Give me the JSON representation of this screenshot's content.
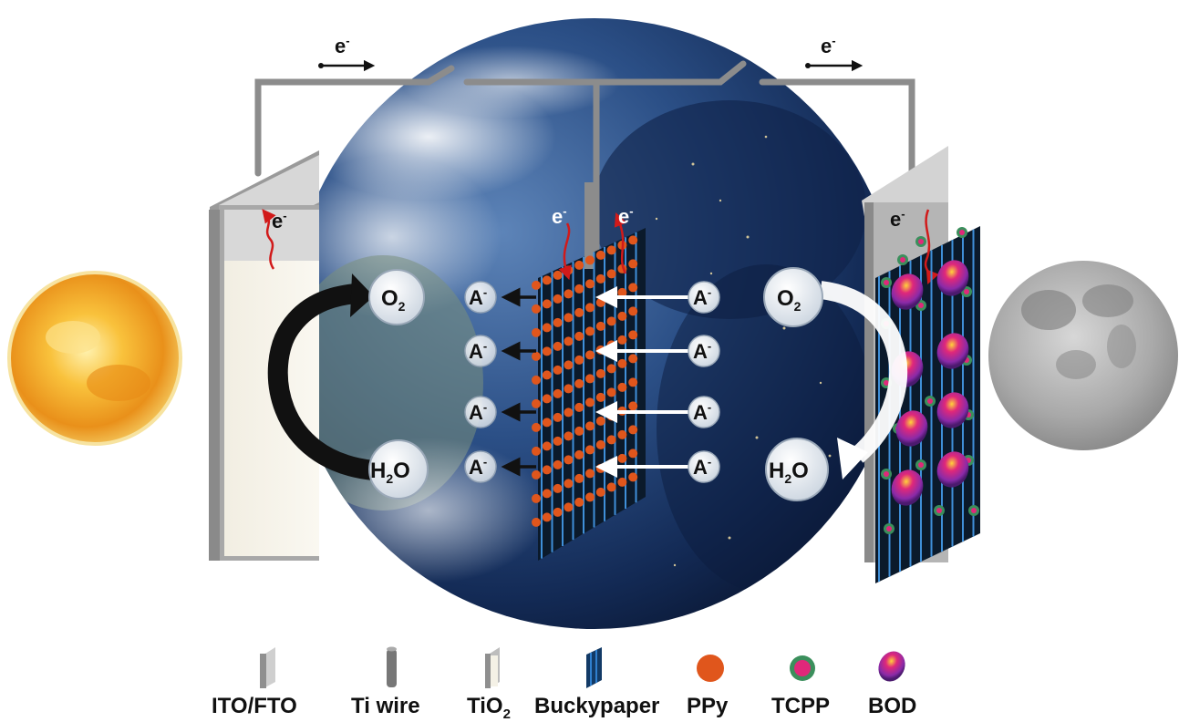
{
  "electron": {
    "base": "e",
    "sup": "-"
  },
  "species": {
    "oxygen": {
      "base": "O",
      "sub": "2"
    },
    "water": {
      "pre": "H",
      "sub": "2",
      "post": "O"
    },
    "anion": {
      "base": "A",
      "sup": "-"
    }
  },
  "legend": [
    {
      "key": "ito",
      "label": "ITO/FTO"
    },
    {
      "key": "ti",
      "label": "Ti wire"
    },
    {
      "key": "tio2",
      "label": "TiO",
      "sub": "2"
    },
    {
      "key": "bucky",
      "label": "Buckypaper"
    },
    {
      "key": "ppy",
      "label": "PPy"
    },
    {
      "key": "tcpp",
      "label": "TCPP"
    },
    {
      "key": "bod",
      "label": "BOD"
    }
  ],
  "colors": {
    "wire": "#8c8c8c",
    "ppy": "#e0561c",
    "tcpp_ring": "#3b8f5c",
    "tcpp_core": "#e0287a",
    "bod": "#8a2aa8",
    "red_arrow": "#d11a1a",
    "sun": "#f2a21c",
    "moon": "#9a9a9a",
    "earth_ocean": "#1d3a6b"
  }
}
